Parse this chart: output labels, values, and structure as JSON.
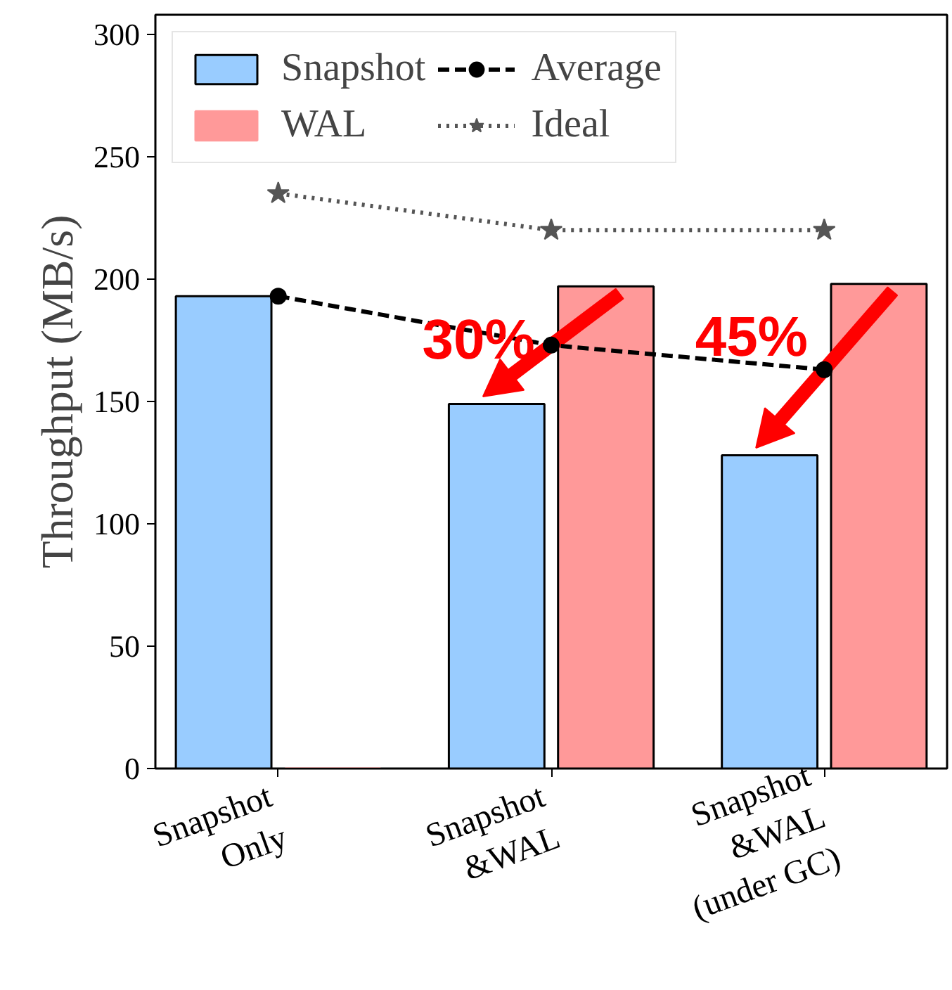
{
  "chart_data": {
    "type": "bar",
    "ylabel": "Throughput (MB/s)",
    "categories": [
      "Snapshot\nOnly",
      "Snapshot\n&WAL",
      "Snapshot\n&WAL\n(under GC)"
    ],
    "series": [
      {
        "name": "Snapshot",
        "color": "#99ccff",
        "values": [
          193,
          149,
          128
        ]
      },
      {
        "name": "WAL",
        "color": "#ff9999",
        "values": [
          0,
          197,
          198
        ]
      },
      {
        "name": "Average",
        "type": "line",
        "color": "#000000",
        "marker": "circle",
        "line_style": "dashed",
        "values": [
          193,
          173,
          163
        ]
      },
      {
        "name": "Ideal",
        "type": "line",
        "color": "#555555",
        "marker": "star",
        "line_style": "dotted",
        "values": [
          235,
          220,
          220
        ]
      }
    ],
    "annotations": [
      "30%",
      "45%"
    ],
    "ylim": [
      0,
      308
    ],
    "yticks": [
      0,
      50,
      100,
      150,
      200,
      250,
      300
    ],
    "grid": false,
    "legend": "top left"
  }
}
